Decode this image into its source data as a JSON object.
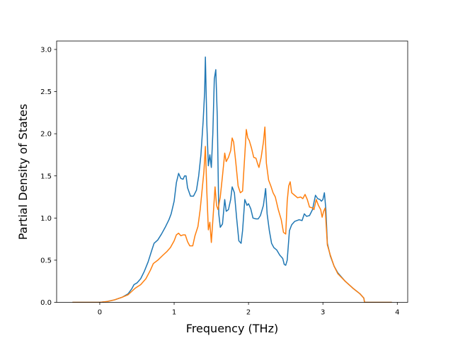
{
  "chart_data": {
    "type": "line",
    "xlabel": "Frequency (THz)",
    "ylabel": "Partial Density of States",
    "xlim": [
      -0.58,
      4.14
    ],
    "ylim": [
      0.0,
      3.1
    ],
    "xticks": [
      {
        "value": 0,
        "label": "0"
      },
      {
        "value": 1,
        "label": "1"
      },
      {
        "value": 2,
        "label": "2"
      },
      {
        "value": 3,
        "label": "3"
      },
      {
        "value": 4,
        "label": "4"
      }
    ],
    "yticks": [
      {
        "value": 0.0,
        "label": "0.0"
      },
      {
        "value": 0.5,
        "label": "0.5"
      },
      {
        "value": 1.0,
        "label": "1.0"
      },
      {
        "value": 1.5,
        "label": "1.5"
      },
      {
        "value": 2.0,
        "label": "2.0"
      },
      {
        "value": 2.5,
        "label": "2.5"
      },
      {
        "value": 3.0,
        "label": "3.0"
      }
    ],
    "grid": false,
    "legend": "none",
    "series": [
      {
        "color": "#1f77b4",
        "points": [
          [
            -0.36,
            0.0
          ],
          [
            0.0,
            0.0
          ],
          [
            0.1,
            0.01
          ],
          [
            0.2,
            0.03
          ],
          [
            0.3,
            0.06
          ],
          [
            0.38,
            0.1
          ],
          [
            0.43,
            0.16
          ],
          [
            0.46,
            0.21
          ],
          [
            0.5,
            0.23
          ],
          [
            0.55,
            0.28
          ],
          [
            0.6,
            0.37
          ],
          [
            0.65,
            0.48
          ],
          [
            0.7,
            0.62
          ],
          [
            0.73,
            0.7
          ],
          [
            0.78,
            0.74
          ],
          [
            0.83,
            0.81
          ],
          [
            0.88,
            0.89
          ],
          [
            0.93,
            0.98
          ],
          [
            0.96,
            1.05
          ],
          [
            1.0,
            1.2
          ],
          [
            1.03,
            1.42
          ],
          [
            1.06,
            1.53
          ],
          [
            1.09,
            1.47
          ],
          [
            1.12,
            1.46
          ],
          [
            1.14,
            1.5
          ],
          [
            1.16,
            1.5
          ],
          [
            1.18,
            1.36
          ],
          [
            1.22,
            1.26
          ],
          [
            1.26,
            1.26
          ],
          [
            1.3,
            1.33
          ],
          [
            1.33,
            1.5
          ],
          [
            1.36,
            1.75
          ],
          [
            1.39,
            2.15
          ],
          [
            1.41,
            2.5
          ],
          [
            1.42,
            2.91
          ],
          [
            1.44,
            2.1
          ],
          [
            1.46,
            1.62
          ],
          [
            1.48,
            1.75
          ],
          [
            1.5,
            1.6
          ],
          [
            1.52,
            2.0
          ],
          [
            1.54,
            2.65
          ],
          [
            1.56,
            2.76
          ],
          [
            1.58,
            2.2
          ],
          [
            1.6,
            1.05
          ],
          [
            1.62,
            0.89
          ],
          [
            1.65,
            0.93
          ],
          [
            1.68,
            1.22
          ],
          [
            1.7,
            1.08
          ],
          [
            1.73,
            1.1
          ],
          [
            1.76,
            1.22
          ],
          [
            1.78,
            1.37
          ],
          [
            1.81,
            1.3
          ],
          [
            1.84,
            1.0
          ],
          [
            1.87,
            0.73
          ],
          [
            1.9,
            0.7
          ],
          [
            1.92,
            0.85
          ],
          [
            1.95,
            1.22
          ],
          [
            1.98,
            1.15
          ],
          [
            2.0,
            1.17
          ],
          [
            2.03,
            1.11
          ],
          [
            2.06,
            1.0
          ],
          [
            2.1,
            0.99
          ],
          [
            2.13,
            0.99
          ],
          [
            2.16,
            1.03
          ],
          [
            2.2,
            1.15
          ],
          [
            2.23,
            1.35
          ],
          [
            2.25,
            1.05
          ],
          [
            2.28,
            0.85
          ],
          [
            2.31,
            0.7
          ],
          [
            2.34,
            0.65
          ],
          [
            2.38,
            0.62
          ],
          [
            2.42,
            0.56
          ],
          [
            2.46,
            0.52
          ],
          [
            2.48,
            0.45
          ],
          [
            2.5,
            0.44
          ],
          [
            2.52,
            0.5
          ],
          [
            2.55,
            0.85
          ],
          [
            2.58,
            0.92
          ],
          [
            2.62,
            0.96
          ],
          [
            2.68,
            0.98
          ],
          [
            2.72,
            0.97
          ],
          [
            2.75,
            1.05
          ],
          [
            2.78,
            1.02
          ],
          [
            2.82,
            1.03
          ],
          [
            2.86,
            1.1
          ],
          [
            2.9,
            1.27
          ],
          [
            2.93,
            1.23
          ],
          [
            2.96,
            1.22
          ],
          [
            2.98,
            1.2
          ],
          [
            3.0,
            1.22
          ],
          [
            3.02,
            1.3
          ],
          [
            3.04,
            1.1
          ],
          [
            3.06,
            0.7
          ],
          [
            3.1,
            0.55
          ],
          [
            3.15,
            0.43
          ],
          [
            3.2,
            0.35
          ],
          [
            3.3,
            0.25
          ],
          [
            3.4,
            0.17
          ],
          [
            3.5,
            0.1
          ],
          [
            3.55,
            0.05
          ],
          [
            3.56,
            0.0
          ],
          [
            3.92,
            0.0
          ]
        ]
      },
      {
        "color": "#ff7f0e",
        "points": [
          [
            -0.36,
            0.0
          ],
          [
            0.0,
            0.0
          ],
          [
            0.1,
            0.01
          ],
          [
            0.2,
            0.03
          ],
          [
            0.3,
            0.06
          ],
          [
            0.38,
            0.09
          ],
          [
            0.43,
            0.13
          ],
          [
            0.48,
            0.17
          ],
          [
            0.55,
            0.21
          ],
          [
            0.62,
            0.28
          ],
          [
            0.68,
            0.38
          ],
          [
            0.72,
            0.46
          ],
          [
            0.78,
            0.5
          ],
          [
            0.85,
            0.56
          ],
          [
            0.9,
            0.6
          ],
          [
            0.95,
            0.65
          ],
          [
            1.0,
            0.73
          ],
          [
            1.03,
            0.8
          ],
          [
            1.06,
            0.82
          ],
          [
            1.09,
            0.79
          ],
          [
            1.12,
            0.8
          ],
          [
            1.15,
            0.8
          ],
          [
            1.18,
            0.72
          ],
          [
            1.21,
            0.67
          ],
          [
            1.25,
            0.67
          ],
          [
            1.28,
            0.79
          ],
          [
            1.32,
            0.9
          ],
          [
            1.35,
            1.1
          ],
          [
            1.38,
            1.37
          ],
          [
            1.4,
            1.55
          ],
          [
            1.42,
            1.85
          ],
          [
            1.44,
            1.3
          ],
          [
            1.46,
            0.86
          ],
          [
            1.48,
            0.95
          ],
          [
            1.5,
            0.71
          ],
          [
            1.53,
            1.1
          ],
          [
            1.55,
            1.37
          ],
          [
            1.57,
            1.15
          ],
          [
            1.59,
            1.1
          ],
          [
            1.62,
            1.25
          ],
          [
            1.65,
            1.5
          ],
          [
            1.68,
            1.77
          ],
          [
            1.7,
            1.67
          ],
          [
            1.73,
            1.72
          ],
          [
            1.76,
            1.8
          ],
          [
            1.78,
            1.95
          ],
          [
            1.8,
            1.9
          ],
          [
            1.83,
            1.65
          ],
          [
            1.86,
            1.38
          ],
          [
            1.89,
            1.3
          ],
          [
            1.92,
            1.32
          ],
          [
            1.95,
            1.75
          ],
          [
            1.97,
            2.05
          ],
          [
            1.99,
            1.95
          ],
          [
            2.01,
            1.92
          ],
          [
            2.04,
            1.83
          ],
          [
            2.07,
            1.72
          ],
          [
            2.1,
            1.71
          ],
          [
            2.12,
            1.65
          ],
          [
            2.14,
            1.6
          ],
          [
            2.17,
            1.72
          ],
          [
            2.2,
            1.9
          ],
          [
            2.22,
            2.08
          ],
          [
            2.24,
            1.65
          ],
          [
            2.27,
            1.45
          ],
          [
            2.3,
            1.38
          ],
          [
            2.33,
            1.3
          ],
          [
            2.36,
            1.25
          ],
          [
            2.4,
            1.1
          ],
          [
            2.44,
            0.98
          ],
          [
            2.47,
            0.83
          ],
          [
            2.5,
            0.81
          ],
          [
            2.52,
            1.2
          ],
          [
            2.54,
            1.38
          ],
          [
            2.56,
            1.43
          ],
          [
            2.58,
            1.3
          ],
          [
            2.62,
            1.27
          ],
          [
            2.66,
            1.24
          ],
          [
            2.7,
            1.25
          ],
          [
            2.73,
            1.23
          ],
          [
            2.76,
            1.28
          ],
          [
            2.79,
            1.22
          ],
          [
            2.82,
            1.13
          ],
          [
            2.86,
            1.12
          ],
          [
            2.88,
            1.1
          ],
          [
            2.91,
            1.22
          ],
          [
            2.94,
            1.15
          ],
          [
            2.97,
            1.1
          ],
          [
            2.99,
            1.01
          ],
          [
            3.01,
            1.08
          ],
          [
            3.03,
            1.12
          ],
          [
            3.06,
            0.68
          ],
          [
            3.1,
            0.56
          ],
          [
            3.15,
            0.43
          ],
          [
            3.2,
            0.34
          ],
          [
            3.3,
            0.25
          ],
          [
            3.4,
            0.17
          ],
          [
            3.5,
            0.1
          ],
          [
            3.55,
            0.05
          ],
          [
            3.56,
            0.0
          ],
          [
            3.92,
            0.0
          ]
        ]
      }
    ]
  }
}
